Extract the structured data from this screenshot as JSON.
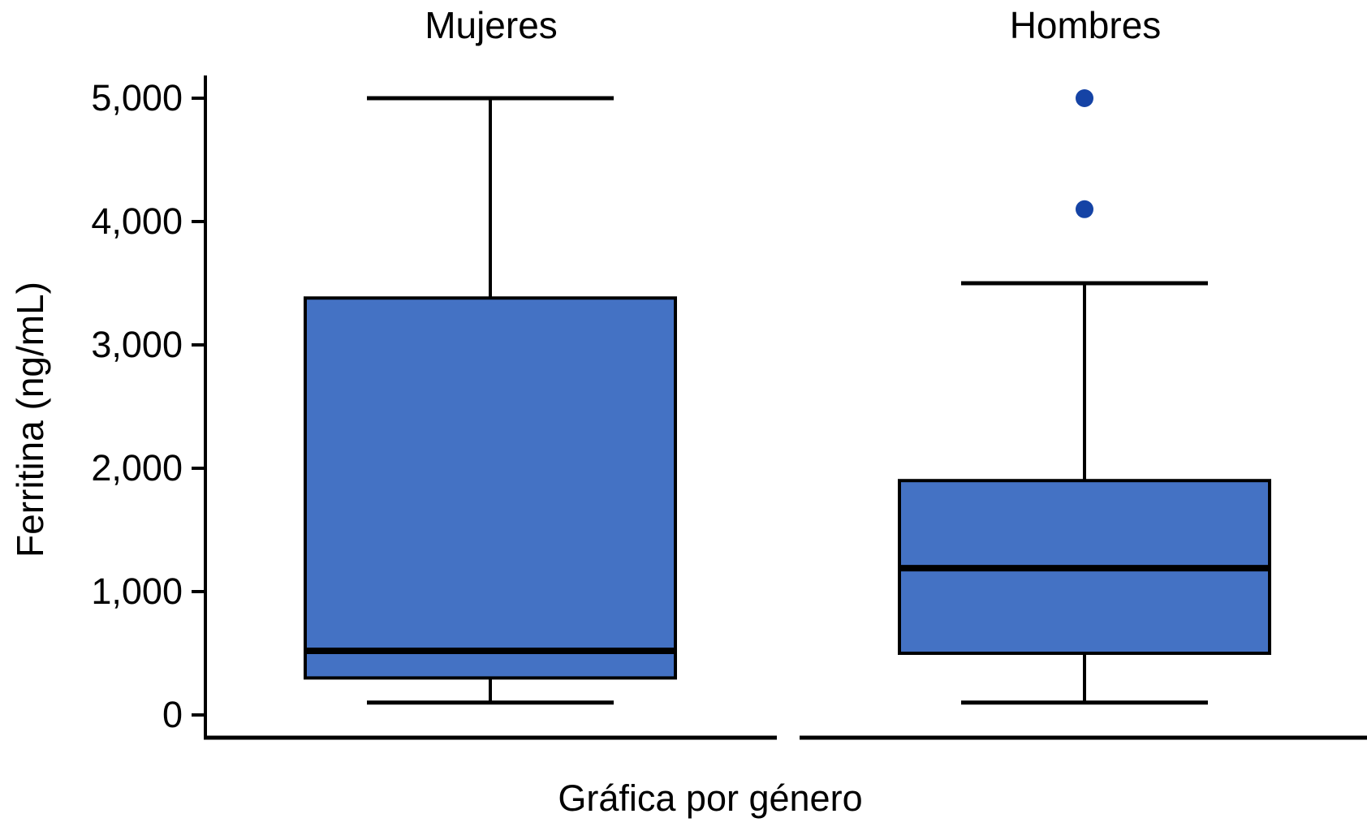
{
  "chart_data": {
    "type": "boxplot",
    "title": "",
    "xlabel": "Gráfica por género",
    "ylabel": "Ferritina (ng/mL)",
    "ylim": [
      0,
      5000
    ],
    "grid": false,
    "legend": "none",
    "yticks": [
      {
        "value": 0,
        "label": "0"
      },
      {
        "value": 1000,
        "label": "1,000"
      },
      {
        "value": 2000,
        "label": "2,000"
      },
      {
        "value": 3000,
        "label": "3,000"
      },
      {
        "value": 4000,
        "label": "4,000"
      },
      {
        "value": 5000,
        "label": "5,000"
      }
    ],
    "series": [
      {
        "name": "Mujeres",
        "min": 100,
        "q1": 300,
        "median": 520,
        "q3": 3380,
        "max": 5000,
        "outliers": []
      },
      {
        "name": "Hombres",
        "min": 100,
        "q1": 500,
        "median": 1190,
        "q3": 1900,
        "max": 3500,
        "outliers": [
          4100,
          5000
        ]
      }
    ],
    "colors": {
      "box_fill": "#4472C4",
      "box_border": "#000000",
      "median": "#000000",
      "whisker": "#000000",
      "axis": "#000000",
      "outlier": "#1543A5",
      "background": "#FFFFFF"
    }
  }
}
